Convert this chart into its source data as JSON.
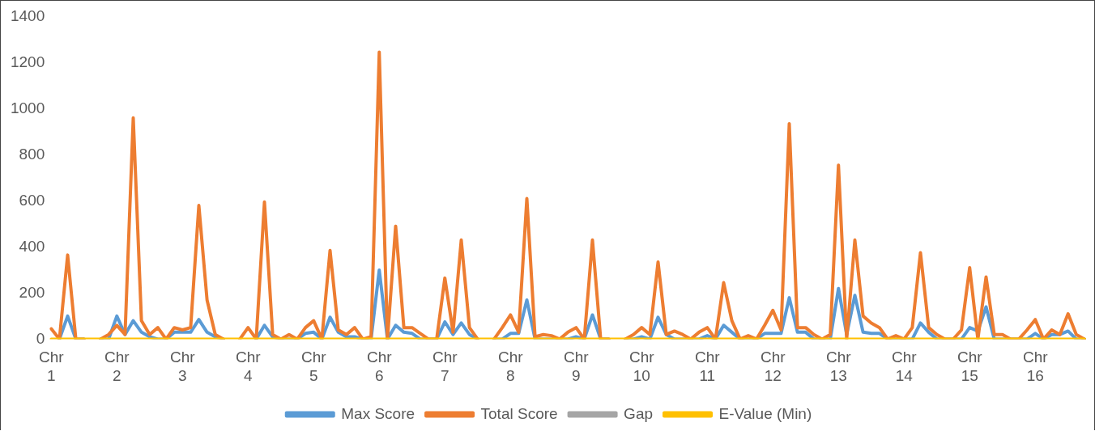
{
  "chart_data": {
    "type": "line",
    "categories": [
      "Chr 1",
      null,
      null,
      null,
      null,
      null,
      null,
      null,
      "Chr 2",
      null,
      null,
      null,
      null,
      null,
      null,
      null,
      "Chr 3",
      null,
      null,
      null,
      null,
      null,
      null,
      null,
      "Chr 4",
      null,
      null,
      null,
      null,
      null,
      null,
      null,
      "Chr 5",
      null,
      null,
      null,
      null,
      null,
      null,
      null,
      "Chr 6",
      null,
      null,
      null,
      null,
      null,
      null,
      null,
      "Chr 7",
      null,
      null,
      null,
      null,
      null,
      null,
      null,
      "Chr 8",
      null,
      null,
      null,
      null,
      null,
      null,
      null,
      "Chr 9",
      null,
      null,
      null,
      null,
      null,
      null,
      null,
      "Chr 10",
      null,
      null,
      null,
      null,
      null,
      null,
      null,
      "Chr 11",
      null,
      null,
      null,
      null,
      null,
      null,
      null,
      "Chr 12",
      null,
      null,
      null,
      null,
      null,
      null,
      null,
      "Chr 13",
      null,
      null,
      null,
      null,
      null,
      null,
      null,
      "Chr 14",
      null,
      null,
      null,
      null,
      null,
      null,
      null,
      "Chr 15",
      null,
      null,
      null,
      null,
      null,
      null,
      null,
      "Chr 16",
      null,
      null,
      null,
      null,
      null,
      null
    ],
    "series": [
      {
        "name": "Max Score",
        "color": "#5b9bd5",
        "values": [
          null,
          0,
          100,
          0,
          0,
          null,
          0,
          0,
          100,
          20,
          80,
          30,
          10,
          0,
          0,
          30,
          30,
          30,
          85,
          30,
          10,
          0,
          null,
          null,
          null,
          0,
          60,
          10,
          0,
          0,
          0,
          25,
          30,
          0,
          95,
          30,
          10,
          10,
          0,
          0,
          300,
          0,
          60,
          30,
          25,
          0,
          0,
          0,
          75,
          20,
          70,
          20,
          0,
          null,
          0,
          0,
          25,
          25,
          170,
          0,
          0,
          0,
          0,
          0,
          10,
          0,
          105,
          0,
          0,
          null,
          0,
          0,
          10,
          0,
          95,
          20,
          0,
          0,
          0,
          0,
          15,
          0,
          60,
          30,
          0,
          0,
          0,
          25,
          25,
          25,
          180,
          30,
          30,
          0,
          0,
          0,
          220,
          20,
          190,
          30,
          25,
          25,
          0,
          0,
          0,
          0,
          70,
          30,
          0,
          0,
          0,
          0,
          50,
          35,
          140,
          0,
          0,
          0,
          0,
          0,
          25,
          0,
          20,
          20,
          35,
          0,
          0
        ]
      },
      {
        "name": "Total Score",
        "color": "#ed7d31",
        "values": [
          45,
          0,
          365,
          0,
          0,
          null,
          0,
          20,
          60,
          20,
          960,
          80,
          20,
          50,
          0,
          50,
          40,
          50,
          580,
          170,
          20,
          0,
          null,
          0,
          50,
          0,
          595,
          20,
          0,
          20,
          0,
          50,
          80,
          0,
          385,
          40,
          20,
          50,
          0,
          10,
          1245,
          0,
          490,
          50,
          50,
          25,
          0,
          0,
          265,
          30,
          430,
          50,
          0,
          null,
          0,
          50,
          105,
          30,
          610,
          10,
          20,
          15,
          0,
          30,
          50,
          0,
          430,
          0,
          0,
          null,
          0,
          20,
          50,
          20,
          335,
          20,
          35,
          20,
          0,
          30,
          50,
          0,
          245,
          80,
          0,
          15,
          0,
          60,
          125,
          40,
          935,
          50,
          50,
          20,
          0,
          20,
          755,
          0,
          430,
          100,
          70,
          50,
          0,
          15,
          0,
          50,
          375,
          50,
          20,
          0,
          0,
          40,
          310,
          0,
          270,
          20,
          20,
          0,
          0,
          40,
          85,
          0,
          40,
          20,
          110,
          20,
          0
        ]
      },
      {
        "name": "Gap",
        "color": "#a5a5a5",
        "values": [
          null,
          null,
          null,
          null,
          null,
          null,
          null,
          null,
          null,
          null,
          null,
          null,
          null,
          null,
          null,
          null,
          null,
          null,
          null,
          null,
          null,
          null,
          null,
          null,
          null,
          null,
          null,
          null,
          null,
          null,
          null,
          null,
          null,
          null,
          null,
          null,
          null,
          null,
          null,
          null,
          null,
          null,
          null,
          null,
          null,
          null,
          null,
          null,
          null,
          null,
          null,
          null,
          null,
          null,
          null,
          null,
          null,
          null,
          null,
          null,
          null,
          null,
          null,
          null,
          null,
          null,
          null,
          null,
          null,
          null,
          null,
          null,
          null,
          null,
          null,
          null,
          null,
          null,
          null,
          null,
          null,
          null,
          null,
          null,
          null,
          null,
          null,
          null,
          null,
          null,
          null,
          null,
          null,
          null,
          null,
          null,
          null,
          null,
          null,
          null,
          null,
          null,
          null,
          null,
          null,
          null,
          null,
          null,
          null,
          null,
          null,
          null,
          null,
          null,
          null,
          null,
          null,
          null,
          null,
          null,
          null,
          null,
          null,
          null,
          null,
          null,
          null
        ]
      },
      {
        "name": "E-Value (Min)",
        "color": "#ffc000",
        "values": [
          0,
          0,
          0,
          0,
          0,
          0,
          0,
          0,
          0,
          0,
          0,
          0,
          0,
          0,
          0,
          0,
          0,
          0,
          0,
          0,
          0,
          0,
          0,
          0,
          0,
          0,
          0,
          0,
          0,
          0,
          0,
          0,
          0,
          0,
          0,
          0,
          0,
          0,
          0,
          0,
          0,
          0,
          0,
          0,
          0,
          0,
          0,
          0,
          0,
          0,
          0,
          0,
          0,
          0,
          0,
          0,
          0,
          0,
          0,
          0,
          0,
          0,
          0,
          0,
          0,
          0,
          0,
          0,
          0,
          0,
          0,
          0,
          0,
          0,
          0,
          0,
          0,
          0,
          0,
          0,
          0,
          0,
          0,
          0,
          0,
          0,
          0,
          0,
          0,
          0,
          0,
          0,
          0,
          0,
          0,
          0,
          0,
          0,
          0,
          0,
          0,
          0,
          0,
          0,
          0,
          0,
          0,
          0,
          0,
          0,
          0,
          0,
          0,
          0,
          0,
          0,
          0,
          0,
          0,
          0,
          0,
          0,
          0,
          0,
          0,
          0,
          0
        ]
      }
    ],
    "ylim": [
      0,
      1400
    ],
    "yticks": [
      0,
      200,
      400,
      600,
      800,
      1000,
      1200,
      1400
    ],
    "grid": false,
    "legend": "bottom",
    "marker": "none",
    "line_style": "solid"
  }
}
